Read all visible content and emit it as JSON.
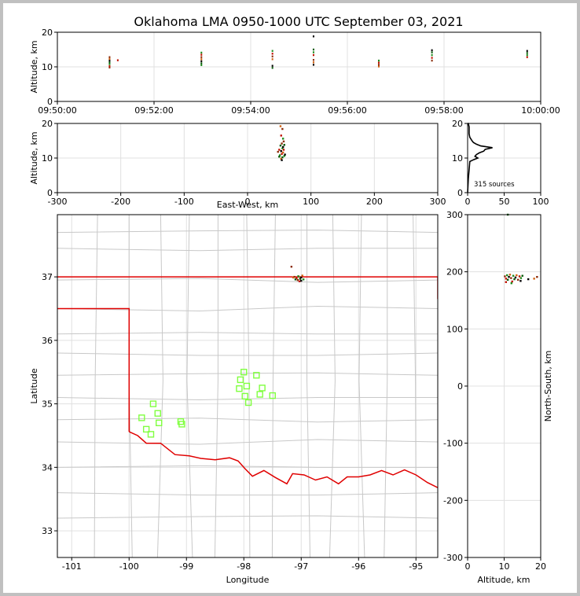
{
  "title": "Oklahoma LMA 0950-1000 UTC September 03, 2021",
  "source_count_label": "315 sources",
  "colors": {
    "border": "#e00000",
    "county": "#c8c8c8",
    "station": "#80ff40",
    "grid": "#e0e0e0"
  },
  "chart_data": [
    {
      "type": "scatter",
      "panel": "altitude-vs-time",
      "xlabel": "",
      "ylabel": "Altitude, km",
      "x_ticks": [
        "09:50:00",
        "09:52:00",
        "09:54:00",
        "09:56:00",
        "09:58:00",
        "10:00:00"
      ],
      "xlim_minutes": [
        0,
        10
      ],
      "ylim": [
        0,
        20
      ],
      "y_ticks": [
        0,
        10,
        20
      ],
      "clusters": [
        {
          "t": 1.08,
          "alt": [
            9.8,
            10.2,
            10.8,
            11.3,
            11.8,
            12.3,
            12.8
          ]
        },
        {
          "t": 1.25,
          "alt": [
            11.9
          ]
        },
        {
          "t": 2.98,
          "alt": [
            10.5,
            11.0,
            11.6,
            12.2,
            12.8,
            13.5,
            14.1
          ]
        },
        {
          "t": 4.45,
          "alt": [
            9.7,
            10.3,
            12.2,
            13.0,
            13.8,
            14.6
          ]
        },
        {
          "t": 5.3,
          "alt": [
            10.6,
            11.3,
            12.0,
            13.4,
            14.2,
            15.0,
            18.8
          ]
        },
        {
          "t": 6.65,
          "alt": [
            10.1,
            10.6,
            11.2,
            11.8
          ]
        },
        {
          "t": 7.75,
          "alt": [
            11.8,
            12.6,
            13.4,
            14.2,
            14.8
          ]
        },
        {
          "t": 9.72,
          "alt": [
            12.8,
            13.4,
            14.0,
            14.6
          ]
        }
      ]
    },
    {
      "type": "scatter",
      "panel": "altitude-vs-east-west",
      "xlabel": "East-West, km",
      "ylabel": "Altitude, km",
      "xlim": [
        -300,
        300
      ],
      "x_ticks": [
        -300,
        -200,
        -100,
        0,
        100,
        200,
        300
      ],
      "ylim": [
        0,
        20
      ],
      "y_ticks": [
        0,
        10,
        20
      ],
      "points": [
        [
          48,
          11.8
        ],
        [
          50,
          12.4
        ],
        [
          51,
          10.8
        ],
        [
          52,
          13.6
        ],
        [
          53,
          12.0
        ],
        [
          53,
          9.8
        ],
        [
          54,
          14.2
        ],
        [
          54,
          11.2
        ],
        [
          55,
          12.8
        ],
        [
          55,
          10.2
        ],
        [
          56,
          13.2
        ],
        [
          56,
          11.6
        ],
        [
          57,
          14.8
        ],
        [
          57,
          12.4
        ],
        [
          58,
          10.6
        ],
        [
          58,
          13.8
        ],
        [
          59,
          11.0
        ],
        [
          52,
          19.2
        ],
        [
          55,
          18.4
        ],
        [
          53,
          16.5
        ],
        [
          56,
          15.6
        ],
        [
          50,
          10.4
        ],
        [
          54,
          9.4
        ]
      ]
    },
    {
      "type": "histogram",
      "panel": "altitude-histogram",
      "xlim": [
        0,
        100
      ],
      "x_ticks": [
        0,
        50,
        100
      ],
      "ylim": [
        0,
        20
      ],
      "y_ticks": [
        0,
        10,
        20
      ],
      "bins": [
        [
          4,
          1
        ],
        [
          9,
          3
        ],
        [
          9.5,
          8
        ],
        [
          10,
          14
        ],
        [
          10.5,
          10
        ],
        [
          11,
          12
        ],
        [
          11.5,
          16
        ],
        [
          12,
          22
        ],
        [
          12.5,
          24
        ],
        [
          13,
          34
        ],
        [
          13.5,
          18
        ],
        [
          14,
          12
        ],
        [
          14.5,
          8
        ],
        [
          15,
          6
        ],
        [
          16,
          3
        ],
        [
          17,
          2
        ],
        [
          18,
          2
        ],
        [
          19,
          2
        ],
        [
          20,
          1
        ]
      ]
    },
    {
      "type": "scatter",
      "panel": "plan-view-map",
      "xlabel": "Longitude",
      "ylabel": "Latitude",
      "xlim": [
        -101.25,
        -94.62
      ],
      "x_ticks": [
        -101,
        -100,
        -99,
        -98,
        -97,
        -96,
        -95
      ],
      "ylim": [
        32.58,
        37.98
      ],
      "y_ticks": [
        33,
        34,
        35,
        36,
        37
      ],
      "stations": [
        [
          -99.58,
          35.0
        ],
        [
          -99.5,
          34.85
        ],
        [
          -99.78,
          34.78
        ],
        [
          -99.48,
          34.7
        ],
        [
          -99.7,
          34.6
        ],
        [
          -99.62,
          34.52
        ],
        [
          -99.1,
          34.72
        ],
        [
          -99.08,
          34.68
        ],
        [
          -98.0,
          35.5
        ],
        [
          -98.06,
          35.38
        ],
        [
          -97.78,
          35.45
        ],
        [
          -97.95,
          35.28
        ],
        [
          -98.08,
          35.24
        ],
        [
          -97.68,
          35.25
        ],
        [
          -97.98,
          35.12
        ],
        [
          -97.72,
          35.15
        ],
        [
          -97.5,
          35.13
        ],
        [
          -97.92,
          35.02
        ]
      ],
      "sources": [
        [
          -97.12,
          37.0
        ],
        [
          -97.08,
          36.98
        ],
        [
          -97.05,
          37.01
        ],
        [
          -97.02,
          36.97
        ],
        [
          -97.0,
          36.99
        ],
        [
          -96.98,
          37.02
        ],
        [
          -97.06,
          36.95
        ],
        [
          -97.03,
          36.93
        ],
        [
          -96.96,
          36.96
        ],
        [
          -97.1,
          36.96
        ],
        [
          -97.0,
          36.94
        ],
        [
          -97.14,
          36.99
        ],
        [
          -97.17,
          37.16
        ]
      ]
    },
    {
      "type": "scatter",
      "panel": "north-south-vs-altitude",
      "xlabel": "Altitude, km",
      "ylabel": "North-South, km",
      "xlim": [
        0,
        20
      ],
      "x_ticks": [
        0,
        10,
        20
      ],
      "ylim": [
        -300,
        300
      ],
      "y_ticks": [
        -300,
        -200,
        -100,
        0,
        100,
        200,
        300
      ],
      "points": [
        [
          10.2,
          192
        ],
        [
          10.5,
          188
        ],
        [
          10.8,
          194
        ],
        [
          11.0,
          186
        ],
        [
          11.3,
          191
        ],
        [
          11.6,
          195
        ],
        [
          11.9,
          189
        ],
        [
          12.2,
          183
        ],
        [
          12.5,
          193
        ],
        [
          12.8,
          187
        ],
        [
          13.1,
          190
        ],
        [
          13.4,
          194
        ],
        [
          13.8,
          186
        ],
        [
          14.2,
          192
        ],
        [
          14.6,
          189
        ],
        [
          15.0,
          193
        ],
        [
          16.6,
          187
        ],
        [
          18.2,
          188
        ],
        [
          19.0,
          191
        ],
        [
          10.5,
          182
        ],
        [
          12.0,
          180
        ],
        [
          11.0,
          300
        ],
        [
          14.5,
          184
        ]
      ]
    }
  ]
}
